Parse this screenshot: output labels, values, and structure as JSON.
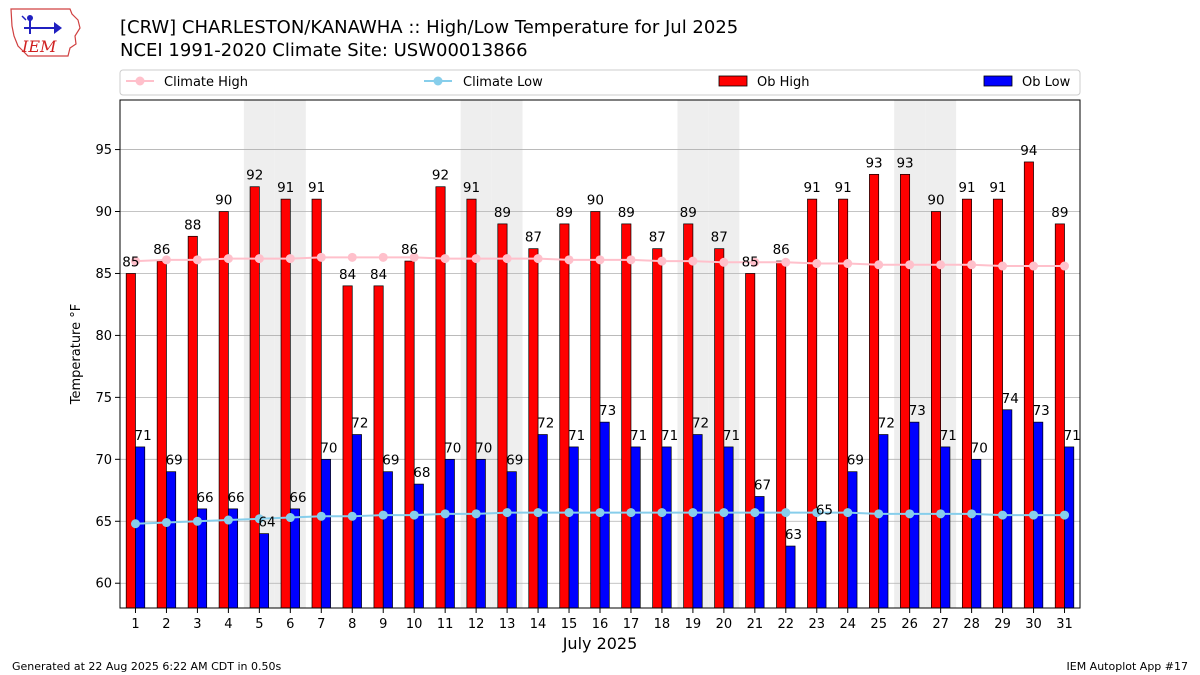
{
  "header": {
    "title_line1": "[CRW] CHARLESTON/KANAWHA :: High/Low Temperature for Jul 2025",
    "title_line2": "NCEI 1991-2020 Climate Site: USW00013866",
    "logo_text": "IEM"
  },
  "footer": {
    "generated": "Generated at 22 Aug 2025 6:22 AM CDT in 0.50s",
    "app": "IEM Autoplot App #17"
  },
  "colors": {
    "ob_high": "#ff0000",
    "ob_low": "#0000ff",
    "climate_high": "#ffc0cb",
    "climate_low": "#87ceeb",
    "weekend_shade": "#eeeeee",
    "grid": "#b0b0b0"
  },
  "chart_data": {
    "type": "bar",
    "xlabel": "July 2025",
    "ylabel": "Temperature °F",
    "ylim": [
      58,
      99
    ],
    "yticks": [
      60,
      65,
      70,
      75,
      80,
      85,
      90,
      95
    ],
    "categories": [
      "1",
      "2",
      "3",
      "4",
      "5",
      "6",
      "7",
      "8",
      "9",
      "10",
      "11",
      "12",
      "13",
      "14",
      "15",
      "16",
      "17",
      "18",
      "19",
      "20",
      "21",
      "22",
      "23",
      "24",
      "25",
      "26",
      "27",
      "28",
      "29",
      "30",
      "31"
    ],
    "shaded_days": [
      5,
      6,
      12,
      13,
      19,
      20,
      26,
      27
    ],
    "legend": [
      "Climate High",
      "Climate Low",
      "Ob High",
      "Ob Low"
    ],
    "series": [
      {
        "name": "Ob High",
        "type": "bar",
        "values": [
          85,
          86,
          88,
          90,
          92,
          91,
          91,
          84,
          84,
          86,
          92,
          91,
          89,
          87,
          89,
          90,
          89,
          87,
          89,
          87,
          85,
          86,
          91,
          91,
          93,
          93,
          90,
          91,
          91,
          94,
          89
        ]
      },
      {
        "name": "Ob Low",
        "type": "bar",
        "values": [
          71,
          69,
          66,
          66,
          64,
          66,
          70,
          72,
          69,
          68,
          70,
          70,
          69,
          72,
          71,
          73,
          71,
          71,
          72,
          71,
          67,
          63,
          65,
          69,
          72,
          73,
          71,
          70,
          74,
          73,
          71
        ]
      },
      {
        "name": "Climate High",
        "type": "line",
        "values": [
          86.0,
          86.1,
          86.1,
          86.2,
          86.2,
          86.2,
          86.3,
          86.3,
          86.3,
          86.3,
          86.2,
          86.2,
          86.2,
          86.2,
          86.1,
          86.1,
          86.1,
          86.0,
          86.0,
          85.9,
          85.9,
          85.9,
          85.8,
          85.8,
          85.7,
          85.7,
          85.7,
          85.7,
          85.6,
          85.6,
          85.6
        ]
      },
      {
        "name": "Climate Low",
        "type": "line",
        "values": [
          64.8,
          64.9,
          65.0,
          65.1,
          65.2,
          65.3,
          65.4,
          65.4,
          65.5,
          65.5,
          65.6,
          65.6,
          65.7,
          65.7,
          65.7,
          65.7,
          65.7,
          65.7,
          65.7,
          65.7,
          65.7,
          65.7,
          65.7,
          65.7,
          65.6,
          65.6,
          65.6,
          65.6,
          65.5,
          65.5,
          65.5
        ]
      }
    ]
  }
}
